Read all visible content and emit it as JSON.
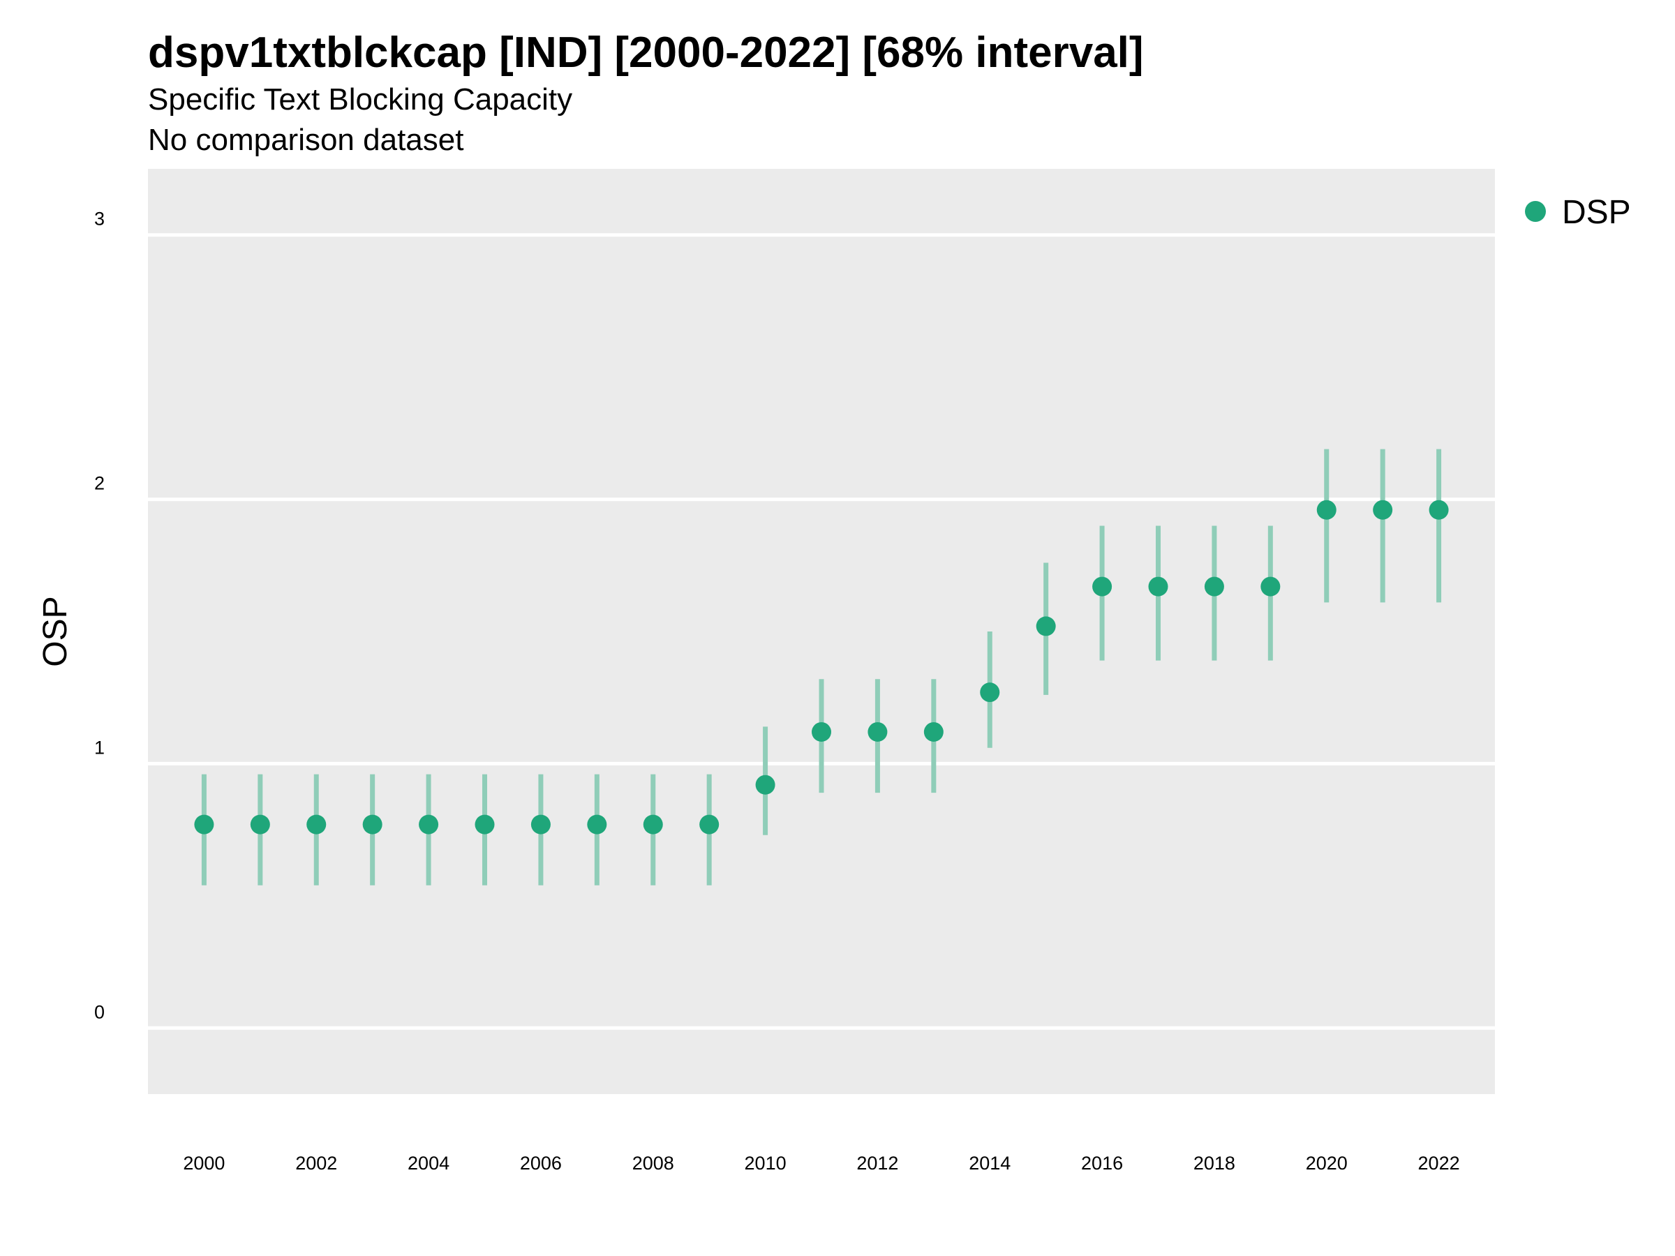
{
  "chart_data": {
    "type": "scatter",
    "title": "dspv1txtblckcap [IND] [2000-2022] [68% interval]",
    "subtitle": "Specific Text Blocking Capacity",
    "caption": "No comparison dataset",
    "xlabel": "",
    "ylabel": "OSP",
    "xlim": [
      1999,
      2023
    ],
    "ylim": [
      -0.25,
      3.25
    ],
    "x_ticks": [
      2000,
      2002,
      2004,
      2006,
      2008,
      2010,
      2012,
      2014,
      2016,
      2018,
      2020,
      2022
    ],
    "y_ticks": [
      0,
      1,
      2,
      3
    ],
    "grid": true,
    "legend_position": "right",
    "series": [
      {
        "name": "DSP",
        "color": "#1fa67a",
        "interval_color": "#8fcdb8",
        "x": [
          2000,
          2001,
          2002,
          2003,
          2004,
          2005,
          2006,
          2007,
          2008,
          2009,
          2010,
          2011,
          2012,
          2013,
          2014,
          2015,
          2016,
          2017,
          2018,
          2019,
          2020,
          2021,
          2022
        ],
        "y": [
          0.77,
          0.77,
          0.77,
          0.77,
          0.77,
          0.77,
          0.77,
          0.77,
          0.77,
          0.77,
          0.92,
          1.12,
          1.12,
          1.12,
          1.27,
          1.52,
          1.67,
          1.67,
          1.67,
          1.67,
          1.96,
          1.96,
          1.96
        ],
        "lower": [
          0.54,
          0.54,
          0.54,
          0.54,
          0.54,
          0.54,
          0.54,
          0.54,
          0.54,
          0.54,
          0.73,
          0.89,
          0.89,
          0.89,
          1.06,
          1.26,
          1.39,
          1.39,
          1.39,
          1.39,
          1.61,
          1.61,
          1.61
        ],
        "upper": [
          0.96,
          0.96,
          0.96,
          0.96,
          0.96,
          0.96,
          0.96,
          0.96,
          0.96,
          0.96,
          1.14,
          1.32,
          1.32,
          1.32,
          1.5,
          1.76,
          1.9,
          1.9,
          1.9,
          1.9,
          2.19,
          2.19,
          2.19
        ]
      }
    ]
  }
}
